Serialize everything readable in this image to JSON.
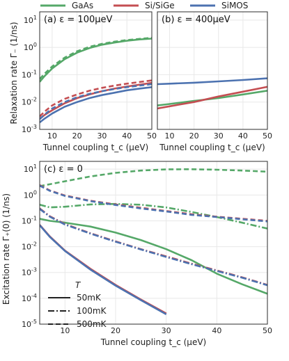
{
  "colors": {
    "GaAs": "#55a868",
    "SiSiGe": "#c44e52",
    "SiMOS": "#4c72b0",
    "grid": "#e8e8e8",
    "frame": "#2b2b2b"
  },
  "legend": {
    "series": [
      "GaAs",
      "Si/SiGe",
      "SiMOS"
    ],
    "style_title": "T",
    "styles": [
      "50mK",
      "100mK",
      "500mK"
    ]
  },
  "axes_text": {
    "ylabel_top": "Relaxation rate Γ₋ (1/ns)",
    "ylabel_bottom": "Excitation rate Γ₊(0) (1/ns)",
    "xlabel": "Tunnel coupling t_c (μeV)"
  },
  "chart_data": [
    {
      "type": "line",
      "title": "(a) ε = 100μeV",
      "x_label": "Tunnel coupling t_c (μeV)",
      "y_label": "Relaxation rate Γ₋ (1/ns)",
      "y_scale": "log",
      "xlim": [
        5,
        50
      ],
      "ylim": [
        0.001,
        20
      ],
      "x_ticks": [
        10,
        20,
        30,
        40,
        50
      ],
      "y_ticks": [
        0.001,
        0.01,
        0.1,
        1,
        10
      ],
      "x": [
        5,
        7,
        10,
        15,
        20,
        25,
        30,
        35,
        40,
        45,
        50
      ],
      "series": [
        {
          "name": "GaAs",
          "style": "50mK",
          "values": [
            0.055,
            0.09,
            0.17,
            0.37,
            0.64,
            0.95,
            1.25,
            1.5,
            1.75,
            1.95,
            2.1
          ]
        },
        {
          "name": "GaAs",
          "style": "500mK",
          "values": [
            0.07,
            0.11,
            0.2,
            0.42,
            0.72,
            1.05,
            1.35,
            1.62,
            1.85,
            2.05,
            2.25
          ]
        },
        {
          "name": "Si/SiGe",
          "style": "50mK",
          "values": [
            0.0024,
            0.0034,
            0.005,
            0.009,
            0.014,
            0.019,
            0.025,
            0.031,
            0.037,
            0.043,
            0.05
          ]
        },
        {
          "name": "Si/SiGe",
          "style": "500mK",
          "values": [
            0.003,
            0.0045,
            0.0075,
            0.013,
            0.019,
            0.026,
            0.033,
            0.04,
            0.047,
            0.054,
            0.062
          ]
        },
        {
          "name": "SiMOS",
          "style": "50mK",
          "values": [
            0.0018,
            0.0025,
            0.0038,
            0.0067,
            0.01,
            0.014,
            0.018,
            0.022,
            0.027,
            0.031,
            0.035
          ]
        },
        {
          "name": "SiMOS",
          "style": "500mK",
          "values": [
            0.0024,
            0.0035,
            0.0058,
            0.01,
            0.015,
            0.02,
            0.025,
            0.03,
            0.035,
            0.04,
            0.045
          ]
        }
      ]
    },
    {
      "type": "line",
      "title": "(b) ε = 400μeV",
      "x_label": "Tunnel coupling t_c (μeV)",
      "y_scale": "log",
      "xlim": [
        5,
        50
      ],
      "ylim": [
        0.001,
        20
      ],
      "x_ticks": [
        10,
        20,
        30,
        40,
        50
      ],
      "x": [
        5,
        10,
        20,
        30,
        40,
        50
      ],
      "series": [
        {
          "name": "GaAs",
          "style": "50mK",
          "values": [
            0.0075,
            0.0085,
            0.011,
            0.014,
            0.019,
            0.026
          ]
        },
        {
          "name": "Si/SiGe",
          "style": "50mK",
          "values": [
            0.0058,
            0.007,
            0.01,
            0.016,
            0.024,
            0.036
          ]
        },
        {
          "name": "SiMOS",
          "style": "50mK",
          "values": [
            0.045,
            0.047,
            0.051,
            0.057,
            0.064,
            0.074
          ]
        }
      ]
    },
    {
      "type": "line",
      "title": "(c) ε = 0",
      "x_label": "Tunnel coupling t_c (μeV)",
      "y_label": "Excitation rate Γ₊(0) (1/ns)",
      "y_scale": "log",
      "xlim": [
        5,
        50
      ],
      "ylim": [
        1e-05,
        20
      ],
      "x_ticks": [
        10,
        20,
        30,
        40,
        50
      ],
      "y_ticks": [
        1e-05,
        0.0001,
        0.001,
        0.01,
        0.1,
        1,
        10
      ],
      "x": [
        5,
        7,
        10,
        15,
        20,
        25,
        30,
        35,
        40,
        45,
        50
      ],
      "series": [
        {
          "name": "GaAs",
          "style": "50mK",
          "values": [
            0.12,
            0.1,
            0.085,
            0.06,
            0.035,
            0.018,
            0.008,
            0.003,
            0.0009,
            0.00035,
            0.00015
          ]
        },
        {
          "name": "GaAs",
          "style": "100mK",
          "values": [
            0.42,
            0.33,
            0.35,
            0.43,
            0.45,
            0.42,
            0.33,
            0.22,
            0.14,
            0.085,
            0.05
          ]
        },
        {
          "name": "GaAs",
          "style": "500mK",
          "values": [
            2.2,
            2.6,
            3.4,
            5.2,
            7.2,
            8.8,
            9.8,
            9.9,
            9.5,
            8.8,
            8.0
          ]
        },
        {
          "name": "Si/SiGe",
          "style": "50mK",
          "values": [
            0.07,
            0.025,
            0.007,
            0.0014,
            0.00033,
            9e-05,
            2.6e-05,
            null,
            null,
            null,
            null
          ]
        },
        {
          "name": "Si/SiGe",
          "style": "100mK",
          "values": [
            0.3,
            0.15,
            0.075,
            0.033,
            0.016,
            0.008,
            0.0042,
            0.0022,
            0.0012,
            0.00065,
            0.00033
          ]
        },
        {
          "name": "Si/SiGe",
          "style": "500mK",
          "values": [
            2.4,
            1.5,
            0.95,
            0.6,
            0.43,
            0.32,
            0.24,
            0.18,
            0.145,
            0.12,
            0.1
          ]
        },
        {
          "name": "SiMOS",
          "style": "50mK",
          "values": [
            0.068,
            0.024,
            0.0068,
            0.0013,
            0.00031,
            8.5e-05,
            2.4e-05,
            null,
            null,
            null,
            null
          ]
        },
        {
          "name": "SiMOS",
          "style": "100mK",
          "values": [
            0.29,
            0.145,
            0.072,
            0.032,
            0.0155,
            0.0078,
            0.004,
            0.0021,
            0.00115,
            0.00063,
            0.00032
          ]
        },
        {
          "name": "SiMOS",
          "style": "500mK",
          "values": [
            2.3,
            1.45,
            0.92,
            0.58,
            0.41,
            0.3,
            0.23,
            0.17,
            0.14,
            0.115,
            0.095
          ]
        }
      ]
    }
  ]
}
